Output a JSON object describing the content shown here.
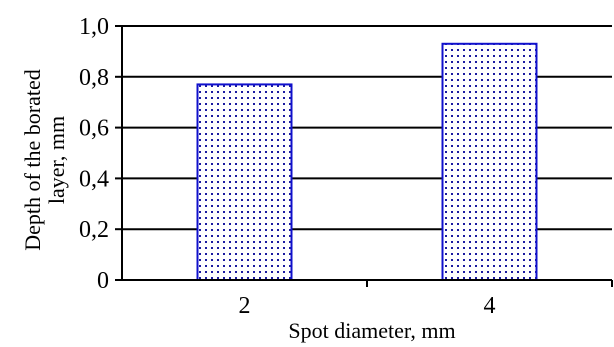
{
  "chart_data": {
    "type": "bar",
    "categories": [
      "2",
      "4"
    ],
    "values": [
      0.77,
      0.93
    ],
    "xlabel": "Spot diameter, mm",
    "ylabel_lines": [
      "Depth of the borated",
      "layer, mm"
    ],
    "ylim": [
      0,
      1.0
    ],
    "yticks": [
      {
        "value": 0,
        "label": "0"
      },
      {
        "value": 0.2,
        "label": "0,2"
      },
      {
        "value": 0.4,
        "label": "0,4"
      },
      {
        "value": 0.6,
        "label": "0,6"
      },
      {
        "value": 0.8,
        "label": "0,8"
      },
      {
        "value": 1.0,
        "label": "1,0"
      }
    ],
    "grid": "horizontal",
    "legend": "none",
    "colors": {
      "bar_edge": "#1010cc",
      "bar_dots": "#1a1aa0",
      "bar_fill": "#ffffff",
      "axis": "#000000"
    }
  }
}
